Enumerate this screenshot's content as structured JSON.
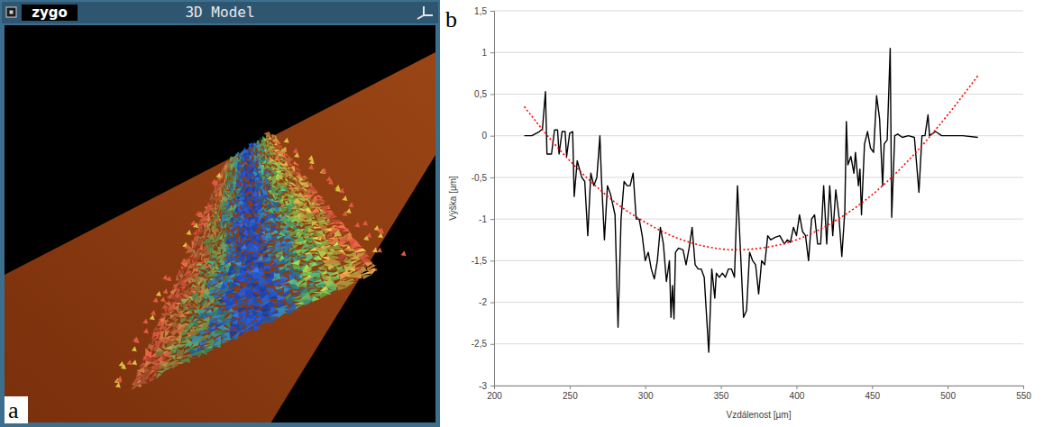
{
  "panel_a": {
    "logo": "zygo",
    "title": "3D Model",
    "label": "a"
  },
  "chart_data": {
    "type": "line",
    "panel_label": "b",
    "x_label": "Vzdálenost [µm]",
    "y_label": "Výška [µm]",
    "xlim": [
      200,
      550
    ],
    "ylim": [
      -3,
      1.5
    ],
    "xticks": [
      200,
      250,
      300,
      350,
      400,
      450,
      500,
      550
    ],
    "yticks": [
      -3,
      {
        "value": -2.5,
        "label": "-2,5"
      },
      -2,
      {
        "value": -1.5,
        "label": "-1,5"
      },
      -1,
      {
        "value": -0.5,
        "label": "-0,5"
      },
      0,
      {
        "value": 0.5,
        "label": "0,5"
      },
      1,
      {
        "value": 1.5,
        "label": "1,5"
      }
    ],
    "grid": true,
    "series": [
      {
        "color": "#000000",
        "line_style": "solid",
        "x": [
          220,
          225,
          230,
          232,
          234,
          235,
          238,
          240,
          242,
          243,
          245,
          247,
          248,
          250,
          252,
          253,
          255,
          258,
          260,
          262,
          264,
          266,
          268,
          270,
          271,
          273,
          275,
          277,
          280,
          282,
          284,
          286,
          288,
          290,
          292,
          294,
          296,
          298,
          300,
          302,
          304,
          306,
          308,
          310,
          312,
          314,
          316,
          317,
          318,
          319,
          320,
          322,
          325,
          327,
          329,
          331,
          333,
          335,
          337,
          339,
          340,
          342,
          344,
          346,
          347,
          349,
          351,
          353,
          355,
          357,
          359,
          361,
          363,
          365,
          367,
          369,
          371,
          373,
          375,
          377,
          379,
          381,
          383,
          386,
          389,
          392,
          394,
          396,
          398,
          400,
          402,
          404,
          406,
          408,
          410,
          412,
          414,
          416,
          418,
          420,
          422,
          424,
          426,
          428,
          430,
          432,
          433,
          434,
          436,
          438,
          439,
          441,
          442,
          443,
          445,
          447,
          449,
          451,
          453,
          455,
          457,
          458,
          460,
          462,
          463,
          465,
          467,
          470,
          474,
          478,
          481,
          483,
          485,
          487,
          488,
          492,
          496,
          500,
          510,
          520
        ],
        "values": [
          0,
          0,
          0.05,
          0.08,
          0.53,
          -0.22,
          -0.22,
          0.07,
          0.07,
          -0.22,
          0.05,
          0.05,
          -0.25,
          0.03,
          0.05,
          -0.73,
          -0.3,
          -0.5,
          -0.55,
          -1.2,
          -0.45,
          -0.6,
          -0.5,
          0,
          -0.5,
          -1.25,
          -0.6,
          -0.7,
          -0.95,
          -2.3,
          -1,
          -0.55,
          -0.6,
          -0.6,
          -0.45,
          -1,
          -1,
          -1.2,
          -1.5,
          -1.4,
          -1.6,
          -1.72,
          -1.5,
          -1.1,
          -1.3,
          -1.75,
          -1.5,
          -2.18,
          -1.8,
          -2.2,
          -1.4,
          -1.35,
          -1.37,
          -1.55,
          -1.35,
          -1.1,
          -1.55,
          -1.6,
          -1.6,
          -1.7,
          -2,
          -2.6,
          -1.6,
          -1.95,
          -1.65,
          -1.7,
          -1.65,
          -1.7,
          -1.6,
          -1.6,
          -1.7,
          -0.6,
          -1.4,
          -2.18,
          -2.1,
          -1.4,
          -1.5,
          -1.55,
          -1.9,
          -1.5,
          -1.55,
          -1.2,
          -1.25,
          -1.22,
          -1.2,
          -1.3,
          -1.25,
          -1.28,
          -1.1,
          -1.2,
          -0.95,
          -1.15,
          -1.2,
          -1.5,
          -1,
          -0.95,
          -1.3,
          -1.3,
          -0.6,
          -1.3,
          -0.6,
          -1.2,
          -0.65,
          -0.95,
          -1.45,
          -0.9,
          0.17,
          -0.35,
          -0.25,
          -0.45,
          -0.2,
          -0.6,
          -0.4,
          -0.95,
          -0.1,
          0.05,
          -0.15,
          -0.2,
          0.48,
          0.2,
          -0.6,
          -0.1,
          -0.05,
          1.05,
          -0.98,
          0,
          0.02,
          -0.02,
          0,
          -0.02,
          -0.68,
          0,
          0,
          0.25,
          0,
          0.05,
          0,
          0,
          0,
          -0.02
        ]
      },
      {
        "color": "#ff0000",
        "line_style": "dotted",
        "x": [
          220,
          240,
          260,
          280,
          300,
          320,
          340,
          360,
          380,
          400,
          420,
          440,
          460,
          480,
          500,
          520
        ],
        "values": [
          0.35,
          -0.1,
          -0.48,
          -0.8,
          -1.04,
          -1.22,
          -1.33,
          -1.37,
          -1.34,
          -1.25,
          -1.08,
          -0.85,
          -0.55,
          -0.18,
          0.25,
          0.72
        ]
      }
    ]
  }
}
